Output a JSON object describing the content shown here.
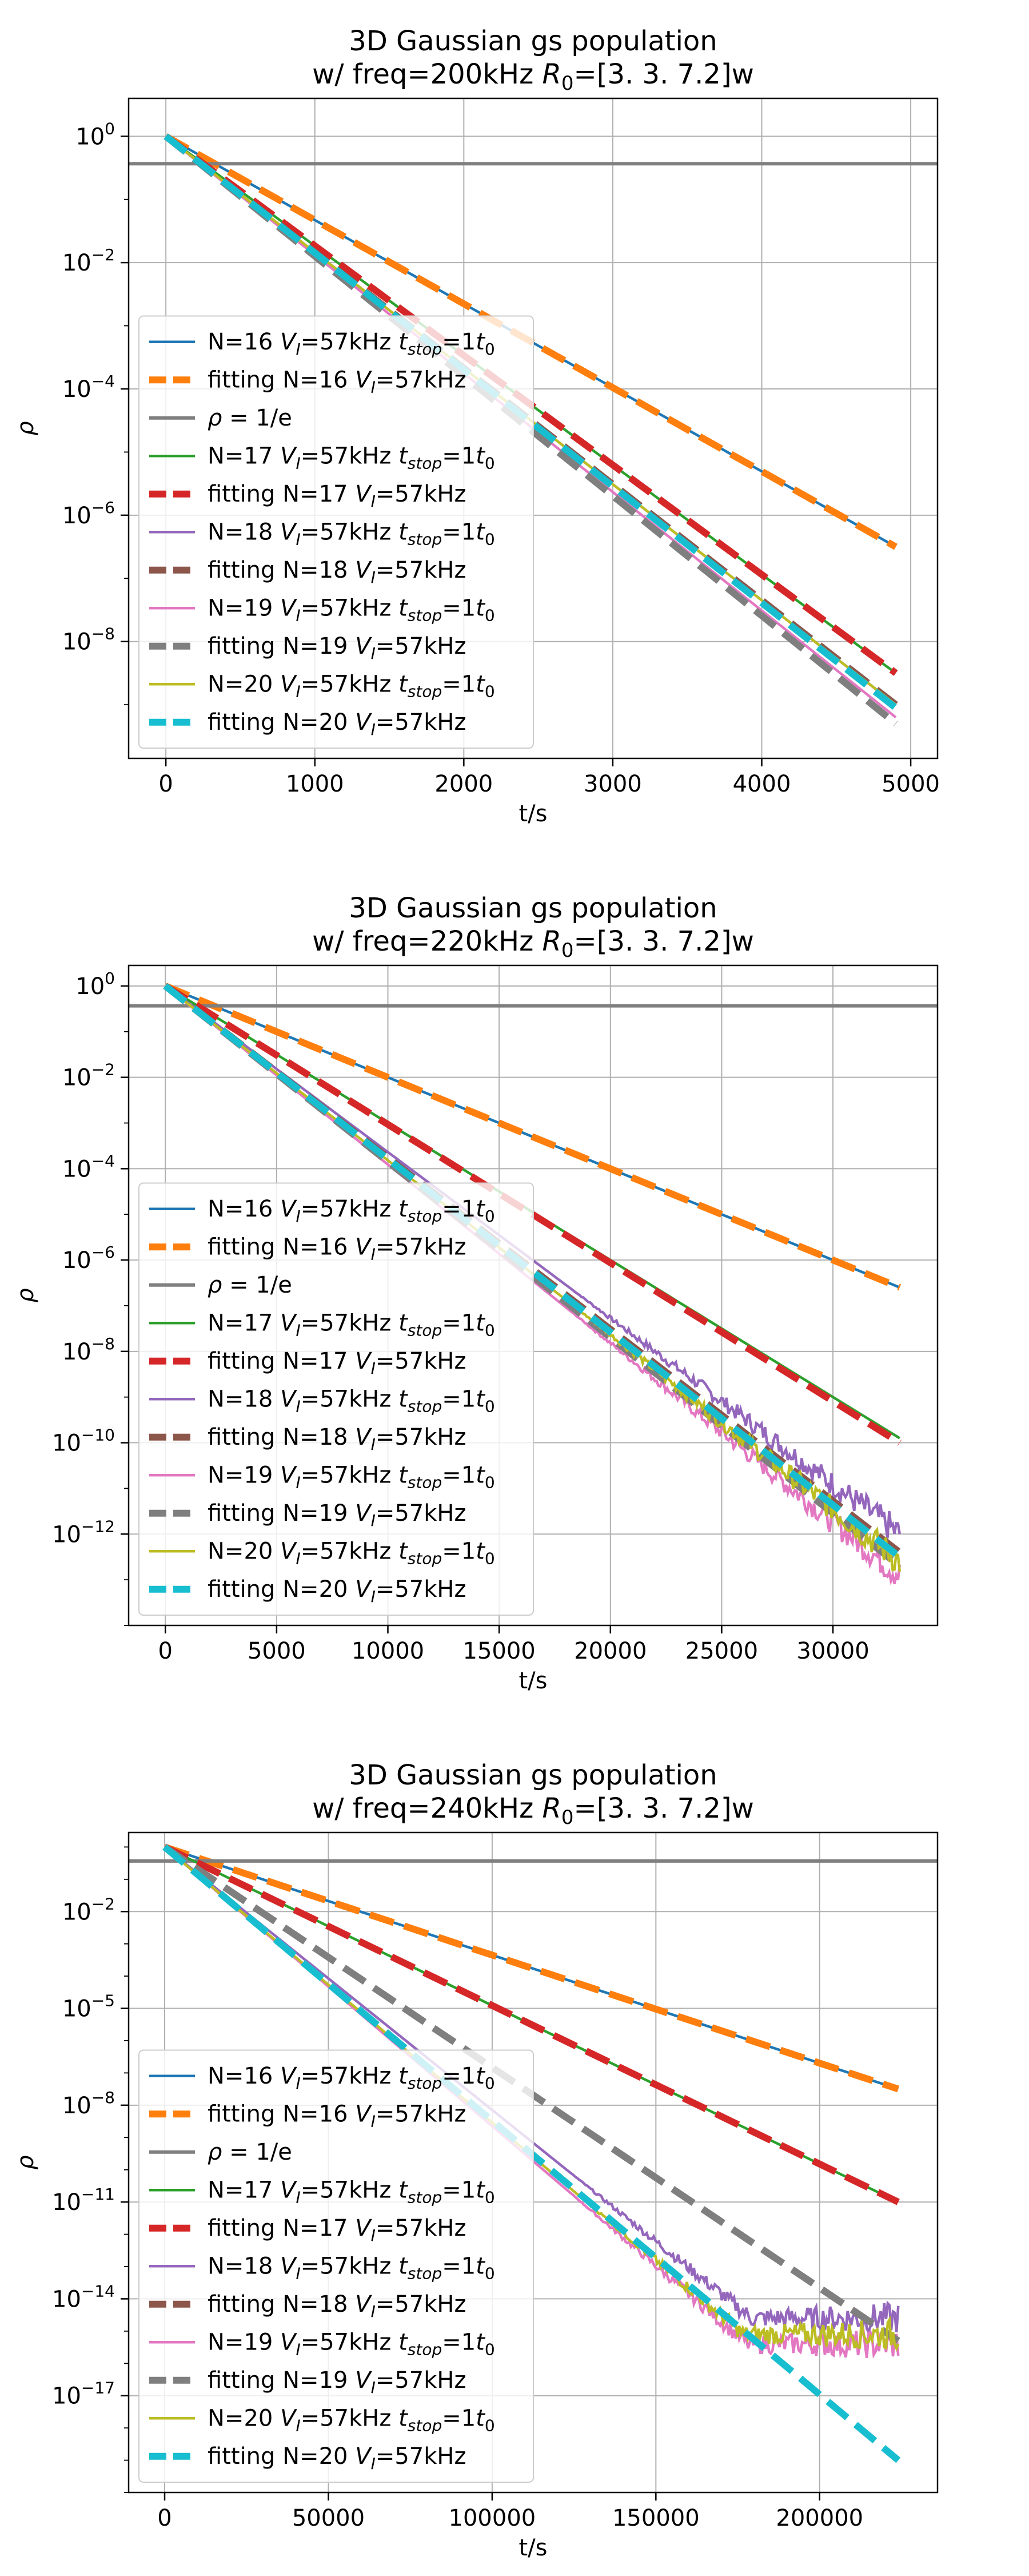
{
  "chart_data": [
    {
      "type": "line",
      "title": "3D Gaussian gs population",
      "subtitle_prefix": "w/ freq=200kHz ",
      "subtitle_R": "R",
      "subtitle_R_sub": "0",
      "subtitle_suffix": "=[3.  3.  7.2]w",
      "xlabel": "t/s",
      "ylabel": "ρ",
      "y_scale": "log",
      "xlim": [
        -250,
        5180
      ],
      "ylim_exp": [
        -9.85,
        0.6
      ],
      "grid": true,
      "legend_position": "lower-left",
      "xticks": [
        0,
        1000,
        2000,
        3000,
        4000,
        5000
      ],
      "xtick_labels": [
        "0",
        "1000",
        "2000",
        "3000",
        "4000",
        "5000"
      ],
      "yticks_exp": [
        0,
        -2,
        -4,
        -6,
        -8
      ],
      "ytick_labels": [
        "10",
        "10",
        "10",
        "10",
        "10"
      ],
      "ytick_sups": [
        "0",
        "−2",
        "−4",
        "−6",
        "−8"
      ],
      "hline": {
        "name": "ρ = 1/e",
        "y": 0.3679
      },
      "series": [
        {
          "name": "N=16 V_I=57kHz t_stop=1t_0",
          "style": "data",
          "color": "#1f77b4",
          "x_range": [
            0,
            4900
          ],
          "y_exp_start": 0,
          "y_exp_end": -6.5
        },
        {
          "name": "fitting N=16 V_I=57kHz",
          "style": "fit",
          "color": "#ff7f0e",
          "x_range": [
            0,
            4900
          ],
          "y_exp_start": 0,
          "y_exp_end": -6.5
        },
        {
          "name": "ρ = 1/e",
          "style": "hline",
          "color": "#7f7f7f"
        },
        {
          "name": "N=17 V_I=57kHz t_stop=1t_0",
          "style": "data",
          "color": "#2ca02c",
          "x_range": [
            0,
            4900
          ],
          "y_exp_start": 0,
          "y_exp_end": -8.5
        },
        {
          "name": "fitting N=17 V_I=57kHz",
          "style": "fit",
          "color": "#d62728",
          "x_range": [
            0,
            4900
          ],
          "y_exp_start": 0,
          "y_exp_end": -8.5
        },
        {
          "name": "N=18 V_I=57kHz t_stop=1t_0",
          "style": "data",
          "color": "#9467bd",
          "x_range": [
            0,
            4900
          ],
          "y_exp_start": 0,
          "y_exp_end": -9.0
        },
        {
          "name": "fitting N=18 V_I=57kHz",
          "style": "fit",
          "color": "#8c564b",
          "x_range": [
            0,
            4900
          ],
          "y_exp_start": 0,
          "y_exp_end": -9.0
        },
        {
          "name": "N=19 V_I=57kHz t_stop=1t_0",
          "style": "data",
          "color": "#e377c2",
          "x_range": [
            0,
            4900
          ],
          "y_exp_start": 0,
          "y_exp_end": -9.2
        },
        {
          "name": "fitting N=19 V_I=57kHz",
          "style": "fit",
          "color": "#7f7f7f",
          "x_range": [
            0,
            4900
          ],
          "y_exp_start": 0,
          "y_exp_end": -9.3
        },
        {
          "name": "N=20 V_I=57kHz t_stop=1t_0",
          "style": "data",
          "color": "#bcbd22",
          "x_range": [
            0,
            4900
          ],
          "y_exp_start": 0,
          "y_exp_end": -9.0
        },
        {
          "name": "fitting N=20 V_I=57kHz",
          "style": "fit",
          "color": "#17becf",
          "x_range": [
            0,
            4900
          ],
          "y_exp_start": 0,
          "y_exp_end": -9.05
        }
      ]
    },
    {
      "type": "line",
      "title": "3D Gaussian gs population",
      "subtitle_prefix": "w/ freq=220kHz ",
      "subtitle_R": "R",
      "subtitle_R_sub": "0",
      "subtitle_suffix": "=[3.  3.  7.2]w",
      "xlabel": "t/s",
      "ylabel": "ρ",
      "y_scale": "log",
      "xlim": [
        -1650,
        34700
      ],
      "ylim_exp": [
        -14.0,
        0.45
      ],
      "grid": true,
      "legend_position": "lower-left",
      "xticks": [
        0,
        5000,
        10000,
        15000,
        20000,
        25000,
        30000
      ],
      "xtick_labels": [
        "0",
        "5000",
        "10000",
        "15000",
        "20000",
        "25000",
        "30000"
      ],
      "yticks_exp": [
        0,
        -2,
        -4,
        -6,
        -8,
        -10,
        -12
      ],
      "ytick_labels": [
        "10",
        "10",
        "10",
        "10",
        "10",
        "10",
        "10"
      ],
      "ytick_sups": [
        "0",
        "−2",
        "−4",
        "−6",
        "−8",
        "−10",
        "−12"
      ],
      "hline": {
        "name": "ρ = 1/e",
        "y": 0.3679
      },
      "series": [
        {
          "name": "N=16 V_I=57kHz t_stop=1t_0",
          "style": "data",
          "color": "#1f77b4",
          "x_range": [
            0,
            33000
          ],
          "y_exp_start": 0,
          "y_exp_end": -6.6
        },
        {
          "name": "fitting N=16 V_I=57kHz",
          "style": "fit",
          "color": "#ff7f0e",
          "x_range": [
            0,
            33000
          ],
          "y_exp_start": 0,
          "y_exp_end": -6.6
        },
        {
          "name": "ρ = 1/e",
          "style": "hline",
          "color": "#7f7f7f"
        },
        {
          "name": "N=17 V_I=57kHz t_stop=1t_0",
          "style": "data",
          "color": "#2ca02c",
          "x_range": [
            0,
            33000
          ],
          "y_exp_start": 0,
          "y_exp_end": -9.9
        },
        {
          "name": "fitting N=17 V_I=57kHz",
          "style": "fit",
          "color": "#d62728",
          "x_range": [
            0,
            33000
          ],
          "y_exp_start": 0,
          "y_exp_end": -10.0
        },
        {
          "name": "N=18 V_I=57kHz t_stop=1t_0",
          "style": "data",
          "color": "#9467bd",
          "x_range": [
            0,
            33000
          ],
          "y_exp_start": 0,
          "y_exp_end": -12.0,
          "noise": true
        },
        {
          "name": "fitting N=18 V_I=57kHz",
          "style": "fit",
          "color": "#8c564b",
          "x_range": [
            0,
            33000
          ],
          "y_exp_start": 0,
          "y_exp_end": -12.4
        },
        {
          "name": "N=19 V_I=57kHz t_stop=1t_0",
          "style": "data",
          "color": "#e377c2",
          "x_range": [
            0,
            33000
          ],
          "y_exp_start": 0,
          "y_exp_end": -12.9,
          "noise": true
        },
        {
          "name": "fitting N=19 V_I=57kHz",
          "style": "fit",
          "color": "#7f7f7f",
          "x_range": [
            0,
            33000
          ],
          "y_exp_start": 0,
          "y_exp_end": -12.7
        },
        {
          "name": "N=20 V_I=57kHz t_stop=1t_0",
          "style": "data",
          "color": "#bcbd22",
          "x_range": [
            0,
            33000
          ],
          "y_exp_start": 0,
          "y_exp_end": -12.6,
          "noise": true
        },
        {
          "name": "fitting N=20 V_I=57kHz",
          "style": "fit",
          "color": "#17becf",
          "x_range": [
            0,
            33000
          ],
          "y_exp_start": 0,
          "y_exp_end": -12.5
        }
      ]
    },
    {
      "type": "line",
      "title": "3D Gaussian gs population",
      "subtitle_prefix": "w/ freq=240kHz ",
      "subtitle_R": "R",
      "subtitle_R_sub": "0",
      "subtitle_suffix": "=[3.  3.  7.2]w",
      "xlabel": "t/s",
      "ylabel": "ρ",
      "y_scale": "log",
      "xlim": [
        -11000,
        236000
      ],
      "ylim_exp": [
        -20.0,
        0.45
      ],
      "grid": true,
      "legend_position": "lower-left",
      "xticks": [
        0,
        50000,
        100000,
        150000,
        200000
      ],
      "xtick_labels": [
        "0",
        "50000",
        "100000",
        "150000",
        "200000"
      ],
      "yticks_exp": [
        -2,
        -5,
        -8,
        -11,
        -14,
        -17
      ],
      "ytick_labels": [
        "10",
        "10",
        "10",
        "10",
        "10",
        "10"
      ],
      "ytick_sups": [
        "−2",
        "−5",
        "−8",
        "−11",
        "−14",
        "−17"
      ],
      "hline": {
        "name": "ρ = 1/e",
        "y": 0.3679
      },
      "series": [
        {
          "name": "N=16 V_I=57kHz t_stop=1t_0",
          "style": "data",
          "color": "#1f77b4",
          "x_range": [
            0,
            224000
          ],
          "y_exp_start": 0,
          "y_exp_end": -7.5
        },
        {
          "name": "fitting N=16 V_I=57kHz",
          "style": "fit",
          "color": "#ff7f0e",
          "x_range": [
            0,
            224000
          ],
          "y_exp_start": 0,
          "y_exp_end": -7.5
        },
        {
          "name": "ρ = 1/e",
          "style": "hline",
          "color": "#7f7f7f"
        },
        {
          "name": "N=17 V_I=57kHz t_stop=1t_0",
          "style": "data",
          "color": "#2ca02c",
          "x_range": [
            0,
            224000
          ],
          "y_exp_start": 0,
          "y_exp_end": -11.0
        },
        {
          "name": "fitting N=17 V_I=57kHz",
          "style": "fit",
          "color": "#d62728",
          "x_range": [
            0,
            224000
          ],
          "y_exp_start": 0,
          "y_exp_end": -11.0
        },
        {
          "name": "N=18 V_I=57kHz t_stop=1t_0",
          "style": "data",
          "color": "#9467bd",
          "x_range": [
            0,
            224000
          ],
          "y_exp_start": 0,
          "y_exp_end": -14.6,
          "noise": true,
          "floor_exp": -14.6
        },
        {
          "name": "fitting N=18 V_I=57kHz",
          "style": "fit",
          "color": "#8c564b",
          "x_range": [
            0,
            224000
          ],
          "y_exp_start": 0,
          "y_exp_end": -15.3
        },
        {
          "name": "N=19 V_I=57kHz t_stop=1t_0",
          "style": "data",
          "color": "#e377c2",
          "x_range": [
            0,
            224000
          ],
          "y_exp_start": 0,
          "y_exp_end": -15.5,
          "noise": true,
          "floor_exp": -15.4
        },
        {
          "name": "fitting N=19 V_I=57kHz",
          "style": "fit",
          "color": "#7f7f7f",
          "x_range": [
            0,
            224000
          ],
          "y_exp_start": 0,
          "y_exp_end": -15.3
        },
        {
          "name": "N=20 V_I=57kHz t_stop=1t_0",
          "style": "data",
          "color": "#bcbd22",
          "x_range": [
            0,
            224000
          ],
          "y_exp_start": 0,
          "y_exp_end": -15.3,
          "noise": true,
          "floor_exp": -15.1
        },
        {
          "name": "fitting N=20 V_I=57kHz",
          "style": "fit",
          "color": "#17becf",
          "x_range": [
            0,
            224000
          ],
          "y_exp_start": 0,
          "y_exp_end": -19.0
        }
      ]
    }
  ]
}
